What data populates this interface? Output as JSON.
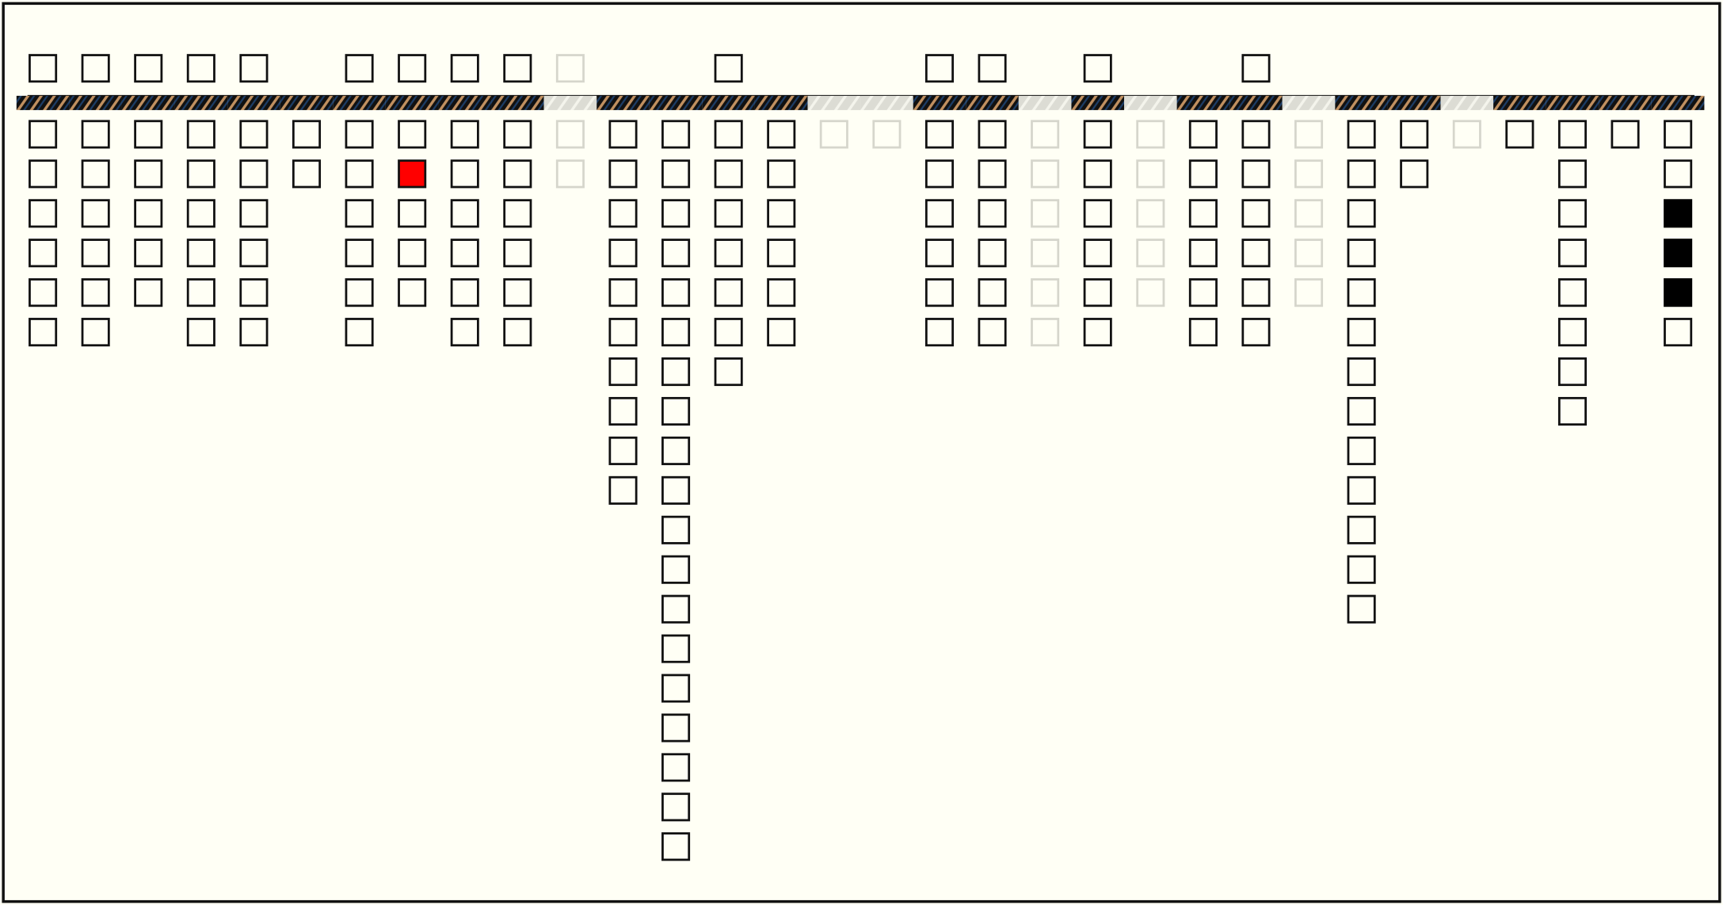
{
  "board": {
    "columns": [
      {
        "top": true,
        "bar": "dark",
        "cells": [
          "empty",
          "empty",
          "empty",
          "empty",
          "empty",
          "empty"
        ]
      },
      {
        "top": true,
        "bar": "dark",
        "cells": [
          "empty",
          "empty",
          "empty",
          "empty",
          "empty",
          "empty"
        ]
      },
      {
        "top": true,
        "bar": "dark",
        "cells": [
          "empty",
          "empty",
          "empty",
          "empty",
          "empty"
        ]
      },
      {
        "top": true,
        "bar": "dark",
        "cells": [
          "empty",
          "empty",
          "empty",
          "empty",
          "empty",
          "empty"
        ]
      },
      {
        "top": true,
        "bar": "dark",
        "cells": [
          "empty",
          "empty",
          "empty",
          "empty",
          "empty",
          "empty"
        ]
      },
      {
        "top": false,
        "bar": "dark",
        "cells": [
          "empty",
          "empty"
        ]
      },
      {
        "top": true,
        "bar": "dark",
        "cells": [
          "empty",
          "empty",
          "empty",
          "empty",
          "empty",
          "empty"
        ]
      },
      {
        "top": true,
        "bar": "dark",
        "cells": [
          "empty",
          "red",
          "empty",
          "empty",
          "empty"
        ]
      },
      {
        "top": true,
        "bar": "dark",
        "cells": [
          "empty",
          "empty",
          "empty",
          "empty",
          "empty",
          "empty"
        ]
      },
      {
        "top": true,
        "bar": "dark",
        "cells": [
          "empty",
          "empty",
          "empty",
          "empty",
          "empty",
          "empty"
        ]
      },
      {
        "top": "faded",
        "bar": "faded",
        "cells": [
          "faded",
          "faded"
        ]
      },
      {
        "top": false,
        "bar": "dark",
        "cells": [
          "empty",
          "empty",
          "empty",
          "empty",
          "empty",
          "empty",
          "empty",
          "empty",
          "empty",
          "empty"
        ]
      },
      {
        "top": false,
        "bar": "dark",
        "cells": [
          "empty",
          "empty",
          "empty",
          "empty",
          "empty",
          "empty",
          "empty",
          "empty",
          "empty",
          "empty",
          "empty",
          "empty",
          "empty",
          "empty",
          "empty",
          "empty",
          "empty",
          "empty",
          "empty"
        ]
      },
      {
        "top": true,
        "bar": "dark",
        "cells": [
          "empty",
          "empty",
          "empty",
          "empty",
          "empty",
          "empty",
          "empty"
        ]
      },
      {
        "top": false,
        "bar": "dark",
        "cells": [
          "empty",
          "empty",
          "empty",
          "empty",
          "empty",
          "empty"
        ]
      },
      {
        "top": false,
        "bar": "faded",
        "cells": [
          "faded"
        ]
      },
      {
        "top": false,
        "bar": "faded",
        "cells": [
          "faded"
        ]
      },
      {
        "top": true,
        "bar": "dark",
        "cells": [
          "empty",
          "empty",
          "empty",
          "empty",
          "empty",
          "empty"
        ]
      },
      {
        "top": true,
        "bar": "dark",
        "cells": [
          "empty",
          "empty",
          "empty",
          "empty",
          "empty",
          "empty"
        ]
      },
      {
        "top": false,
        "bar": "faded",
        "cells": [
          "faded",
          "faded",
          "faded",
          "faded",
          "faded",
          "faded"
        ]
      },
      {
        "top": true,
        "bar": "dark",
        "cells": [
          "empty",
          "empty",
          "empty",
          "empty",
          "empty",
          "empty"
        ]
      },
      {
        "top": false,
        "bar": "faded",
        "cells": [
          "faded",
          "faded",
          "faded",
          "faded",
          "faded"
        ]
      },
      {
        "top": false,
        "bar": "dark",
        "cells": [
          "empty",
          "empty",
          "empty",
          "empty",
          "empty",
          "empty"
        ]
      },
      {
        "top": true,
        "bar": "dark",
        "cells": [
          "empty",
          "empty",
          "empty",
          "empty",
          "empty",
          "empty"
        ]
      },
      {
        "top": false,
        "bar": "faded",
        "cells": [
          "faded",
          "faded",
          "faded",
          "faded",
          "faded"
        ]
      },
      {
        "top": false,
        "bar": "dark",
        "cells": [
          "empty",
          "empty",
          "empty",
          "empty",
          "empty",
          "empty",
          "empty",
          "empty",
          "empty",
          "empty",
          "empty",
          "empty",
          "empty"
        ]
      },
      {
        "top": false,
        "bar": "dark",
        "cells": [
          "empty",
          "empty"
        ]
      },
      {
        "top": false,
        "bar": "faded",
        "cells": [
          "faded"
        ]
      },
      {
        "top": false,
        "bar": "dark",
        "cells": [
          "empty"
        ]
      },
      {
        "top": false,
        "bar": "dark",
        "cells": [
          "empty",
          "empty",
          "empty",
          "empty",
          "empty",
          "empty",
          "empty",
          "empty"
        ]
      },
      {
        "top": false,
        "bar": "dark",
        "cells": [
          "empty"
        ]
      },
      {
        "top": false,
        "bar": "dark",
        "cells": [
          "empty",
          "empty",
          "black",
          "black",
          "black",
          "empty"
        ]
      }
    ]
  }
}
